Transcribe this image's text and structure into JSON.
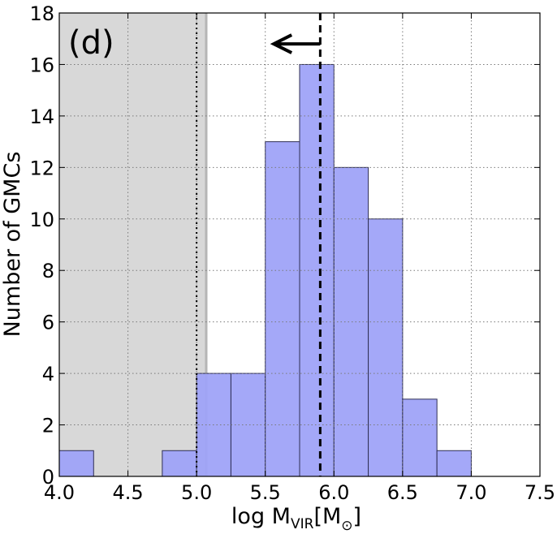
{
  "chart_data": {
    "type": "bar",
    "panel_label": "(d)",
    "xlabel": {
      "prefix": "log M",
      "sub": "VIR",
      "unit_open": "[M",
      "unit_sub": "⊙",
      "unit_close": "]"
    },
    "ylabel": "Number of GMCs",
    "xlim": [
      4.0,
      7.5
    ],
    "ylim": [
      0,
      18
    ],
    "x_ticks": [
      "4.0",
      "4.5",
      "5.0",
      "5.5",
      "6.0",
      "6.5",
      "7.0",
      "7.5"
    ],
    "y_ticks": [
      "0",
      "2",
      "4",
      "6",
      "8",
      "10",
      "12",
      "14",
      "16",
      "18"
    ],
    "grid": true,
    "bin_width": 0.25,
    "bins": [
      {
        "x0": 4.0,
        "count": 1
      },
      {
        "x0": 4.75,
        "count": 1
      },
      {
        "x0": 5.0,
        "count": 4
      },
      {
        "x0": 5.25,
        "count": 4
      },
      {
        "x0": 5.5,
        "count": 13
      },
      {
        "x0": 5.75,
        "count": 16
      },
      {
        "x0": 6.0,
        "count": 12
      },
      {
        "x0": 6.25,
        "count": 10
      },
      {
        "x0": 6.5,
        "count": 3
      },
      {
        "x0": 6.75,
        "count": 1
      }
    ],
    "shaded_region": [
      4.0,
      5.07
    ],
    "dotted_vline": 5.0,
    "dashed_vline": 5.9,
    "arrow": {
      "from_x": 5.9,
      "to_x": 5.55,
      "y": 16.8,
      "direction": "left"
    },
    "colors": {
      "bar_fill": "#9fa3f8",
      "bar_edge": "#2f2f55",
      "shaded": "#d8d8d8",
      "grid": "#7a7a7a"
    }
  }
}
